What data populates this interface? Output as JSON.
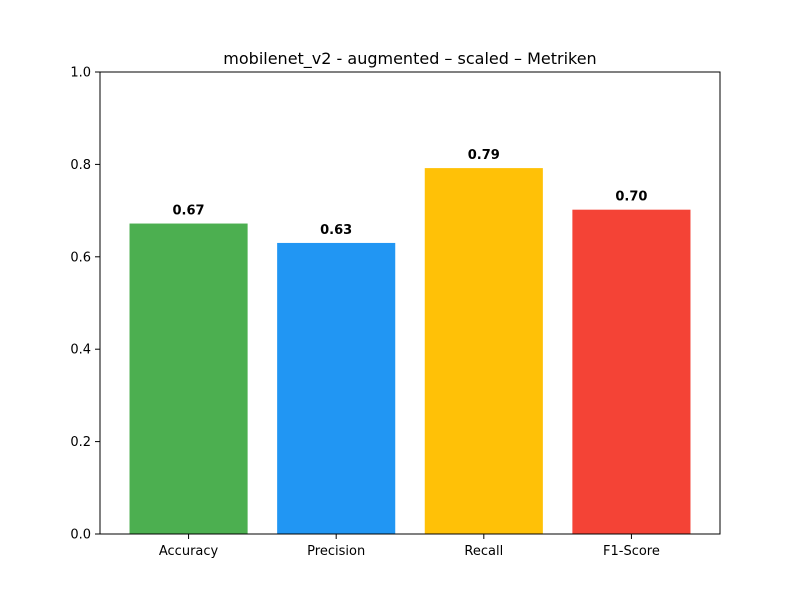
{
  "chart_data": {
    "type": "bar",
    "title": "mobilenet_v2 - augmented – scaled – Metriken",
    "xlabel": "",
    "ylabel": "",
    "categories": [
      "Accuracy",
      "Precision",
      "Recall",
      "F1-Score"
    ],
    "values": [
      0.672,
      0.63,
      0.792,
      0.702
    ],
    "value_labels": [
      "0.67",
      "0.63",
      "0.79",
      "0.70"
    ],
    "colors": [
      "#4caf50",
      "#2196f3",
      "#ffc107",
      "#f44336"
    ],
    "ylim": [
      0,
      1.0
    ],
    "yticks": [
      0.0,
      0.2,
      0.4,
      0.6,
      0.8,
      1.0
    ],
    "ytick_labels": [
      "0.0",
      "0.2",
      "0.4",
      "0.6",
      "0.8",
      "1.0"
    ],
    "grid": false,
    "legend": "none"
  }
}
